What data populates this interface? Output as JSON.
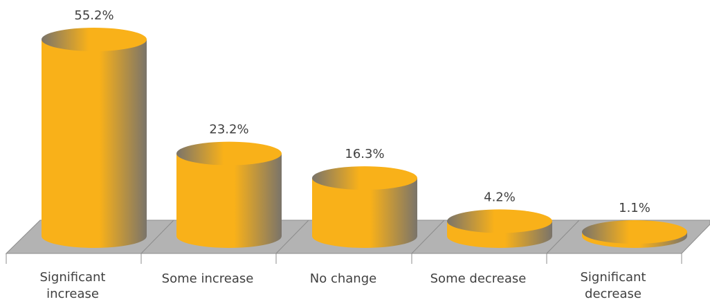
{
  "chart_data": {
    "type": "bar",
    "style": "3d-cylinder",
    "categories": [
      [
        "Significant",
        "increase"
      ],
      [
        "Some increase"
      ],
      [
        "No change"
      ],
      [
        "Some decrease"
      ],
      [
        "Significant",
        "decrease"
      ]
    ],
    "values": [
      55.2,
      23.2,
      16.3,
      4.2,
      1.1
    ],
    "data_labels": [
      "55.2%",
      "23.2%",
      "16.3%",
      "4.2%",
      "1.1%"
    ],
    "unit": "%",
    "ylim": [
      0,
      55.2
    ],
    "grid": false,
    "legend": "none",
    "colors": {
      "bar_main": "#F9B119",
      "bar_shadow": "#7A746A",
      "floor": "#B3B3B3",
      "floor_edge": "#8C8C8C",
      "axis": "#8C8C8C",
      "text": "#404040"
    }
  }
}
